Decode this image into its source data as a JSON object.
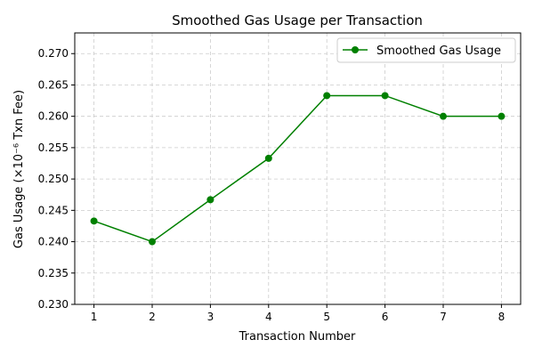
{
  "chart_data": {
    "type": "line",
    "title": "Smoothed Gas Usage per Transaction",
    "xlabel": "Transaction Number",
    "ylabel": "Gas Usage (×10⁻⁶ Txn Fee)",
    "x": [
      1,
      2,
      3,
      4,
      5,
      6,
      7,
      8
    ],
    "xlim": [
      0.67,
      8.33
    ],
    "ylim": [
      0.23,
      0.2733
    ],
    "yticks": [
      "0.230",
      "0.235",
      "0.240",
      "0.245",
      "0.250",
      "0.255",
      "0.260",
      "0.265",
      "0.270"
    ],
    "xticks": [
      "1",
      "2",
      "3",
      "4",
      "5",
      "6",
      "7",
      "8"
    ],
    "grid": true,
    "legend_position": "top-right",
    "series": [
      {
        "name": "Smoothed Gas Usage",
        "color": "#008000",
        "marker": "circle",
        "values": [
          0.2433,
          0.24,
          0.2467,
          0.2533,
          0.2633,
          0.2633,
          0.26,
          0.26
        ]
      }
    ]
  }
}
